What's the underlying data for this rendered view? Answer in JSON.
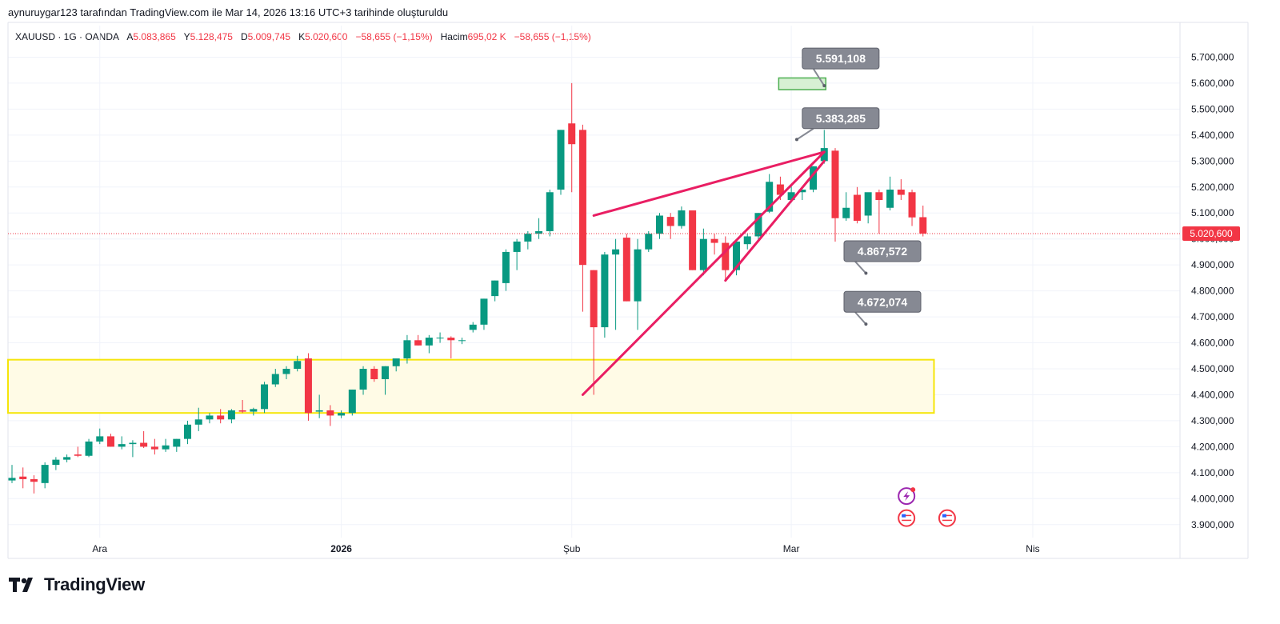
{
  "header": {
    "caption": "aynuruygar123 tarafından TradingView.com ile Mar 14, 2026 13:16 UTC+3 tarihinde oluşturuldu"
  },
  "legend": {
    "symbol": "XAUUSD · 1G · OANDA",
    "open_label": "A",
    "open": "5.083,865",
    "high_label": "Y",
    "high": "5.128,475",
    "low_label": "D",
    "low": "5.009,745",
    "close_label": "K",
    "close": "5.020,600",
    "change": "−58,655 (−1,15%)",
    "volume_label": "Hacim",
    "volume": "695,02 K",
    "volume_change": "−58,655 (−1,15%)"
  },
  "footer": {
    "brand": "TradingView"
  },
  "colors": {
    "up": "#089981",
    "down": "#f23645",
    "trendline": "#e91e63",
    "zone_border": "#f5e50a",
    "zone_fill": "#fffbe6",
    "label_bg": "#868993",
    "price_tag": "#f23645"
  },
  "chart_data": {
    "type": "candlestick",
    "symbol": "XAUUSD",
    "ylim": [
      3850,
      5760
    ],
    "y_ticks": [
      3900,
      4000,
      4100,
      4200,
      4300,
      4400,
      4500,
      4600,
      4700,
      4800,
      4900,
      5000,
      5100,
      5200,
      5300,
      5400,
      5500,
      5600,
      5700
    ],
    "y_tick_labels": [
      "3.900,000",
      "4.000,000",
      "4.100,000",
      "4.200,000",
      "4.300,000",
      "4.400,000",
      "4.500,000",
      "4.600,000",
      "4.700,000",
      "4.800,000",
      "4.900,000",
      "5.000,000",
      "5.100,000",
      "5.200,000",
      "5.300,000",
      "5.400,000",
      "5.500,000",
      "5.600,000",
      "5.700,000"
    ],
    "x_labels": [
      {
        "label": "Ara",
        "index": 8,
        "bold": false
      },
      {
        "label": "2026",
        "index": 30,
        "bold": true
      },
      {
        "label": "Şub",
        "index": 51,
        "bold": false
      },
      {
        "label": "Mar",
        "index": 71,
        "bold": false
      },
      {
        "label": "Nis",
        "index": 93,
        "bold": false
      }
    ],
    "candles": [
      [
        4070,
        4130,
        4060,
        4080
      ],
      [
        4085,
        4120,
        4040,
        4075
      ],
      [
        4075,
        4090,
        4020,
        4065
      ],
      [
        4060,
        4140,
        4040,
        4130
      ],
      [
        4130,
        4160,
        4110,
        4150
      ],
      [
        4150,
        4170,
        4140,
        4160
      ],
      [
        4170,
        4200,
        4160,
        4165
      ],
      [
        4165,
        4230,
        4160,
        4220
      ],
      [
        4220,
        4270,
        4210,
        4240
      ],
      [
        4240,
        4250,
        4200,
        4200
      ],
      [
        4200,
        4240,
        4190,
        4210
      ],
      [
        4210,
        4225,
        4160,
        4215
      ],
      [
        4215,
        4260,
        4195,
        4200
      ],
      [
        4200,
        4230,
        4170,
        4190
      ],
      [
        4190,
        4230,
        4180,
        4205
      ],
      [
        4200,
        4230,
        4180,
        4230
      ],
      [
        4230,
        4300,
        4210,
        4285
      ],
      [
        4285,
        4350,
        4260,
        4305
      ],
      [
        4305,
        4330,
        4290,
        4320
      ],
      [
        4320,
        4345,
        4290,
        4305
      ],
      [
        4305,
        4345,
        4290,
        4340
      ],
      [
        4340,
        4380,
        4330,
        4335
      ],
      [
        4335,
        4350,
        4320,
        4345
      ],
      [
        4345,
        4450,
        4330,
        4440
      ],
      [
        4440,
        4500,
        4430,
        4480
      ],
      [
        4480,
        4510,
        4460,
        4500
      ],
      [
        4500,
        4550,
        4490,
        4530
      ],
      [
        4540,
        4560,
        4300,
        4330
      ],
      [
        4335,
        4400,
        4310,
        4340
      ],
      [
        4340,
        4360,
        4280,
        4320
      ],
      [
        4320,
        4340,
        4310,
        4330
      ],
      [
        4330,
        4420,
        4320,
        4420
      ],
      [
        4420,
        4510,
        4400,
        4500
      ],
      [
        4500,
        4510,
        4450,
        4460
      ],
      [
        4460,
        4510,
        4400,
        4510
      ],
      [
        4510,
        4540,
        4490,
        4540
      ],
      [
        4540,
        4630,
        4520,
        4610
      ],
      [
        4610,
        4630,
        4590,
        4590
      ],
      [
        4590,
        4630,
        4560,
        4620
      ],
      [
        4620,
        4640,
        4600,
        4620
      ],
      [
        4620,
        4625,
        4540,
        4610
      ],
      [
        4610,
        4620,
        4595,
        4610
      ],
      [
        4650,
        4680,
        4640,
        4670
      ],
      [
        4670,
        4770,
        4650,
        4770
      ],
      [
        4780,
        4840,
        4760,
        4840
      ],
      [
        4830,
        4960,
        4800,
        4950
      ],
      [
        4950,
        5000,
        4880,
        4990
      ],
      [
        4990,
        5030,
        4960,
        5020
      ],
      [
        5020,
        5080,
        5000,
        5030
      ],
      [
        5030,
        5190,
        5010,
        5180
      ],
      [
        5190,
        5420,
        5170,
        5420
      ],
      [
        5445,
        5600,
        5180,
        5365
      ],
      [
        5420,
        5440,
        4720,
        4900
      ],
      [
        4880,
        4880,
        4400,
        4660
      ],
      [
        4660,
        4950,
        4620,
        4940
      ],
      [
        4940,
        5000,
        4650,
        4960
      ],
      [
        5005,
        5020,
        4760,
        4760
      ],
      [
        4760,
        5000,
        4650,
        4960
      ],
      [
        4960,
        5030,
        4950,
        5020
      ],
      [
        5020,
        5100,
        5000,
        5090
      ],
      [
        5085,
        5100,
        5000,
        5050
      ],
      [
        5050,
        5125,
        5040,
        5110
      ],
      [
        5110,
        5110,
        4880,
        4880
      ],
      [
        4880,
        5040,
        4860,
        5000
      ],
      [
        5000,
        5020,
        4940,
        4985
      ],
      [
        4985,
        5010,
        4840,
        4880
      ],
      [
        4880,
        4990,
        4860,
        4990
      ],
      [
        4980,
        5020,
        4960,
        5010
      ],
      [
        5010,
        5100,
        4990,
        5100
      ],
      [
        5105,
        5250,
        5100,
        5220
      ],
      [
        5210,
        5240,
        5150,
        5170
      ],
      [
        5150,
        5210,
        5140,
        5180
      ],
      [
        5180,
        5190,
        5150,
        5190
      ],
      [
        5190,
        5280,
        5180,
        5280
      ],
      [
        5300,
        5420,
        5290,
        5350
      ],
      [
        5340,
        5350,
        4990,
        5080
      ],
      [
        5080,
        5180,
        5070,
        5120
      ],
      [
        5170,
        5200,
        5060,
        5070
      ],
      [
        5090,
        5170,
        5060,
        5180
      ],
      [
        5180,
        5190,
        5020,
        5150
      ],
      [
        5120,
        5240,
        5110,
        5190
      ],
      [
        5190,
        5230,
        5150,
        5170
      ],
      [
        5180,
        5190,
        5050,
        5083
      ],
      [
        5083.865,
        5128.475,
        5009.745,
        5020.6
      ]
    ],
    "current_price": 5020.6,
    "current_price_label": "5.020,600",
    "zone": {
      "start_index": -1,
      "end_index": 84,
      "top": 4535,
      "bottom": 4330
    },
    "trendlines": [
      {
        "from": [
          52,
          4400
        ],
        "to": [
          74,
          5335
        ]
      },
      {
        "from": [
          53,
          5090
        ],
        "to": [
          74,
          5335
        ]
      },
      {
        "from": [
          65,
          4840
        ],
        "to": [
          74,
          5300
        ]
      }
    ],
    "target_box": {
      "start_index": 70,
      "end_index": 74,
      "top": 5620,
      "bottom": 5575
    },
    "price_labels": [
      {
        "text": "5.591,108",
        "index": 75.5,
        "y": 5695,
        "point": [
          74,
          5590
        ]
      },
      {
        "text": "5.383,285",
        "index": 75.5,
        "y": 5465,
        "point": [
          71.5,
          5383
        ]
      },
      {
        "text": "4.867,572",
        "index": 79.3,
        "y": 4953,
        "point": [
          77.8,
          4868
        ]
      },
      {
        "text": "4.672,074",
        "index": 79.3,
        "y": 4758,
        "point": [
          77.8,
          4672
        ]
      }
    ],
    "event_icons": [
      {
        "index": 81.5,
        "y": 4010,
        "kind": "flash-event-icon"
      },
      {
        "index": 81.5,
        "y": 3925,
        "kind": "us-flag-icon"
      },
      {
        "index": 85.2,
        "y": 3925,
        "kind": "us-flag-icon"
      }
    ]
  }
}
